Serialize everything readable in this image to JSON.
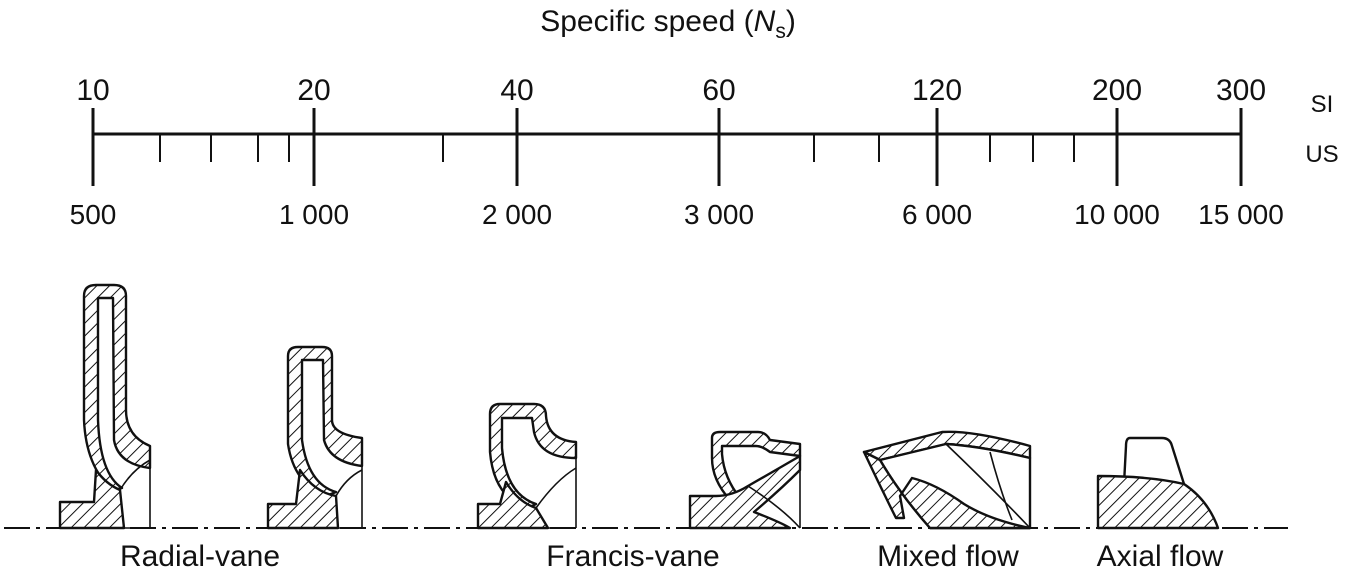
{
  "title": {
    "main": "Specific speed (",
    "symbol": "N",
    "subscript": "s",
    "close": ")"
  },
  "scale": {
    "si_label": "SI",
    "us_label": "US",
    "si_ticks": [
      "10",
      "20",
      "40",
      "60",
      "120",
      "200",
      "300"
    ],
    "us_ticks": [
      "500",
      "1 000",
      "2 000",
      "3 000",
      "6 000",
      "10 000",
      "15 000"
    ],
    "minor_ticks_us": [
      700,
      850,
      950,
      1500,
      4000,
      5000,
      7000,
      8000,
      9000
    ]
  },
  "impellers": {
    "labels": [
      "Radial-vane",
      "Francis-vane",
      "Mixed flow",
      "Axial flow"
    ]
  }
}
